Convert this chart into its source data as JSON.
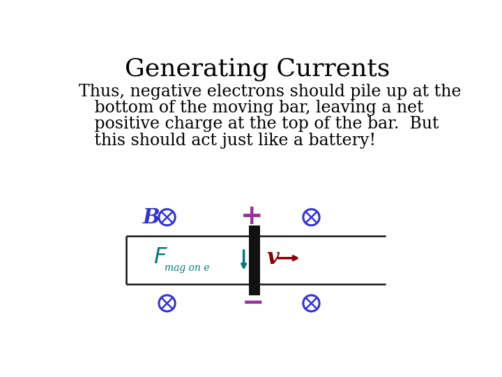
{
  "title": "Generating Currents",
  "title_font_size": 26,
  "body_font_size": 17,
  "background_color": "#ffffff",
  "otimes_color": "#3333cc",
  "plus_minus_color": "#993399",
  "v_color": "#880000",
  "F_color": "#007777",
  "bar_color": "#111111",
  "rail_color": "#111111",
  "arrow_color": "#007777",
  "v_arrow_color": "#880000",
  "body_lines": [
    "Thus, negative electrons should pile up at the",
    "   bottom of the moving bar, leaving a net",
    "   positive charge at the top of the bar.  But",
    "   this should act just like a battery!"
  ]
}
